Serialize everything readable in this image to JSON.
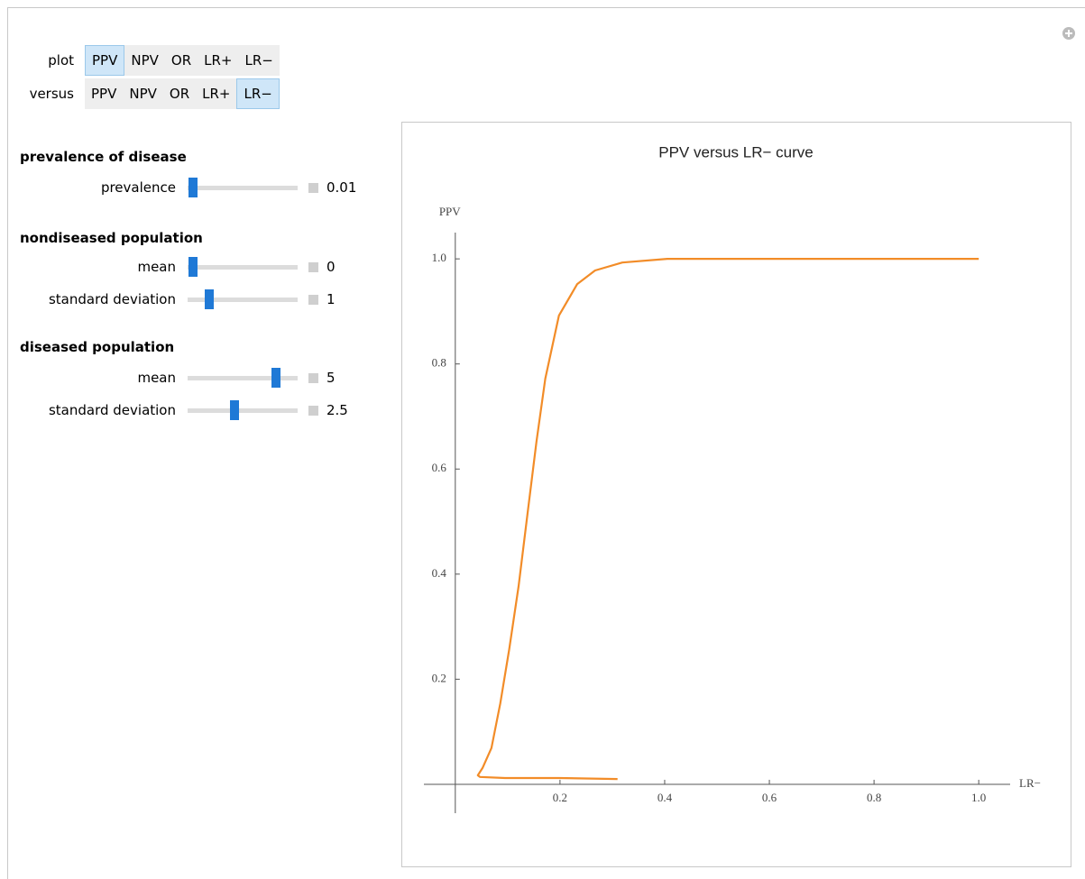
{
  "controls": {
    "selectors": [
      {
        "label": "plot",
        "options": [
          "PPV",
          "NPV",
          "OR",
          "LR+",
          "LR−"
        ],
        "selected": 0
      },
      {
        "label": "versus",
        "options": [
          "PPV",
          "NPV",
          "OR",
          "LR+",
          "LR−"
        ],
        "selected": 4
      }
    ],
    "sections": [
      {
        "title": "prevalence of disease",
        "sliders": [
          {
            "label": "prevalence",
            "value": 0.01
          }
        ]
      },
      {
        "title": "nondiseased population",
        "sliders": [
          {
            "label": "mean",
            "value": 0
          },
          {
            "label": "standard deviation",
            "value": 1
          }
        ]
      },
      {
        "title": "diseased population",
        "sliders": [
          {
            "label": "mean",
            "value": 5
          },
          {
            "label": "standard deviation",
            "value": 2.5
          }
        ]
      }
    ]
  },
  "chart_data": {
    "type": "line",
    "title": "PPV versus LR− curve",
    "x_label": "LR−",
    "y_label": "PPV",
    "color": "#f28c28",
    "x": [
      1.0,
      0.405,
      0.319,
      0.267,
      0.233,
      0.198,
      0.172,
      0.155,
      0.138,
      0.121,
      0.103,
      0.086,
      0.069,
      0.052,
      0.043,
      0.047,
      0.095,
      0.198,
      0.31
    ],
    "values": [
      1.0,
      1.0,
      0.993,
      0.978,
      0.952,
      0.892,
      0.772,
      0.652,
      0.515,
      0.377,
      0.257,
      0.154,
      0.069,
      0.031,
      0.017,
      0.014,
      0.012,
      0.012,
      0.01
    ],
    "xlim": [
      -0.06,
      1.06
    ],
    "ylim": [
      -0.055,
      1.05
    ],
    "xticks": [
      0.2,
      0.4,
      0.6,
      0.8,
      {
        "value": 1,
        "label": "1.0"
      }
    ],
    "yticks": [
      0.2,
      0.4,
      0.6,
      0.8,
      {
        "value": 1,
        "label": "1.0"
      }
    ]
  }
}
